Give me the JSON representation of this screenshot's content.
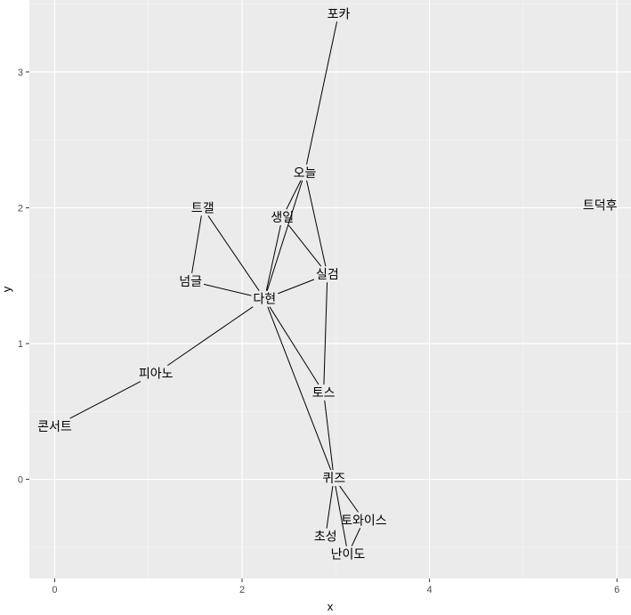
{
  "chart_data": {
    "type": "network",
    "xlabel": "x",
    "ylabel": "y",
    "xlim": [
      -0.27,
      6.15
    ],
    "ylim": [
      -0.73,
      3.53
    ],
    "x_ticks": [
      0,
      2,
      4,
      6
    ],
    "y_ticks": [
      0,
      1,
      2,
      3
    ],
    "grid": true,
    "nodes": [
      {
        "id": "포카",
        "x": 3.03,
        "y": 3.43
      },
      {
        "id": "오늘",
        "x": 2.67,
        "y": 2.26
      },
      {
        "id": "생일",
        "x": 2.43,
        "y": 1.93
      },
      {
        "id": "트갤",
        "x": 1.58,
        "y": 2.0
      },
      {
        "id": "트덕후",
        "x": 5.82,
        "y": 2.02
      },
      {
        "id": "넘글",
        "x": 1.45,
        "y": 1.46
      },
      {
        "id": "실검",
        "x": 2.91,
        "y": 1.51
      },
      {
        "id": "다현",
        "x": 2.24,
        "y": 1.33
      },
      {
        "id": "피아노",
        "x": 1.08,
        "y": 0.78
      },
      {
        "id": "콘서트",
        "x": 0.0,
        "y": 0.39
      },
      {
        "id": "토스",
        "x": 2.87,
        "y": 0.64
      },
      {
        "id": "퀴즈",
        "x": 2.98,
        "y": 0.01
      },
      {
        "id": "토와이스",
        "x": 3.3,
        "y": -0.3
      },
      {
        "id": "초성",
        "x": 2.89,
        "y": -0.42
      },
      {
        "id": "난이도",
        "x": 3.13,
        "y": -0.55
      }
    ],
    "edges": [
      [
        "포카",
        "오늘"
      ],
      [
        "오늘",
        "다현"
      ],
      [
        "오늘",
        "생일"
      ],
      [
        "오늘",
        "실검"
      ],
      [
        "생일",
        "다현"
      ],
      [
        "생일",
        "실검"
      ],
      [
        "트갤",
        "넘글"
      ],
      [
        "트갤",
        "다현"
      ],
      [
        "넘글",
        "다현"
      ],
      [
        "실검",
        "다현"
      ],
      [
        "실검",
        "토스"
      ],
      [
        "다현",
        "피아노"
      ],
      [
        "다현",
        "토스"
      ],
      [
        "다현",
        "퀴즈"
      ],
      [
        "피아노",
        "콘서트"
      ],
      [
        "토스",
        "퀴즈"
      ],
      [
        "퀴즈",
        "토와이스"
      ],
      [
        "퀴즈",
        "초성"
      ],
      [
        "퀴즈",
        "난이도"
      ],
      [
        "토와이스",
        "난이도"
      ]
    ]
  }
}
